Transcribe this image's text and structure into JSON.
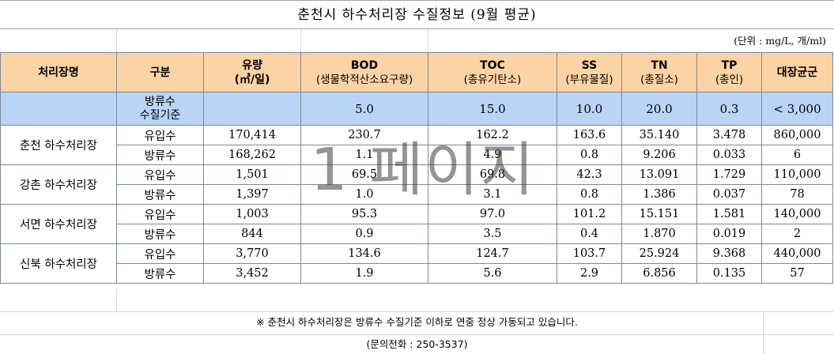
{
  "title": "춘천시 하수처리장 수질정보 (9월 평균)",
  "unit": "(단위 : mg/L, 개/ml)",
  "headers": {
    "facility": "처리장명",
    "category": "구분",
    "flow": "유량",
    "flow_unit": "(㎥/일)",
    "bod": "BOD",
    "bod_sub": "(생물학적산소요구량)",
    "toc": "TOC",
    "toc_sub": "(총유기탄소)",
    "ss": "SS",
    "ss_sub": "(부유물질)",
    "tn": "TN",
    "tn_sub": "(총질소)",
    "tp": "TP",
    "tp_sub": "(총인)",
    "coliform": "대장균군"
  },
  "standard": {
    "label_line1": "방류수",
    "label_line2": "수질기준",
    "flow": "",
    "bod": "5.0",
    "toc": "15.0",
    "ss": "10.0",
    "tn": "20.0",
    "tp": "0.3",
    "coliform": "< 3,000"
  },
  "plants": [
    {
      "name": "춘천 하수처리장",
      "rows": [
        {
          "category": "유입수",
          "flow": "170,414",
          "bod": "230.7",
          "toc": "162.2",
          "ss": "163.6",
          "tn": "35.140",
          "tp": "3.478",
          "coliform": "860,000"
        },
        {
          "category": "방류수",
          "flow": "168,262",
          "bod": "1.1",
          "toc": "4.9",
          "ss": "0.8",
          "tn": "9.206",
          "tp": "0.033",
          "coliform": "6"
        }
      ]
    },
    {
      "name": "강촌 하수처리장",
      "rows": [
        {
          "category": "유입수",
          "flow": "1,501",
          "bod": "69.5",
          "toc": "69.8",
          "ss": "42.3",
          "tn": "13.091",
          "tp": "1.729",
          "coliform": "110,000"
        },
        {
          "category": "방류수",
          "flow": "1,397",
          "bod": "1.0",
          "toc": "3.1",
          "ss": "0.8",
          "tn": "1.386",
          "tp": "0.037",
          "coliform": "78"
        }
      ]
    },
    {
      "name": "서면 하수처리장",
      "rows": [
        {
          "category": "유입수",
          "flow": "1,003",
          "bod": "95.3",
          "toc": "97.0",
          "ss": "101.2",
          "tn": "15.151",
          "tp": "1.581",
          "coliform": "140,000"
        },
        {
          "category": "방류수",
          "flow": "844",
          "bod": "0.9",
          "toc": "3.5",
          "ss": "0.4",
          "tn": "1.870",
          "tp": "0.019",
          "coliform": "2"
        }
      ]
    },
    {
      "name": "신북 하수처리장",
      "rows": [
        {
          "category": "유입수",
          "flow": "3,770",
          "bod": "134.6",
          "toc": "124.7",
          "ss": "103.7",
          "tn": "25.924",
          "tp": "9.368",
          "coliform": "440,000"
        },
        {
          "category": "방류수",
          "flow": "3,452",
          "bod": "1.9",
          "toc": "5.6",
          "ss": "2.9",
          "tn": "6.856",
          "tp": "0.135",
          "coliform": "57"
        }
      ]
    }
  ],
  "note": "※ 춘천시 하수처리장은 방류수 수질기준 이하로 연중 정상 가동되고 있습니다.",
  "contact": "(문의전화 : 250-3537)",
  "watermark": "1 페이지"
}
